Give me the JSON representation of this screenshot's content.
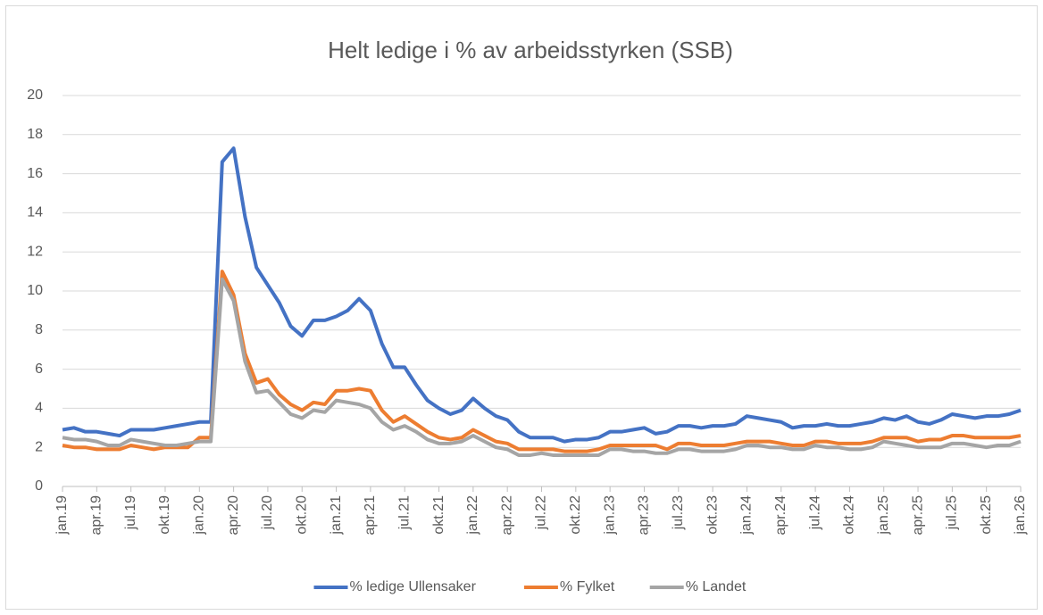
{
  "chart_data": {
    "type": "line",
    "title": "Helt ledige i % av arbeidsstyrken (SSB)",
    "categories": [
      "jan.19",
      null,
      null,
      "apr.19",
      null,
      null,
      "jul.19",
      null,
      null,
      "okt.19",
      null,
      null,
      "jan.20",
      null,
      null,
      "apr.20",
      null,
      null,
      "jul.20",
      null,
      null,
      "okt.20",
      null,
      null,
      "jan.21",
      null,
      null,
      "apr.21",
      null,
      null,
      "jul.21",
      null,
      null,
      "okt.21",
      null,
      null,
      "jan.22",
      null,
      null,
      "apr.22",
      null,
      null,
      "jul.22",
      null,
      null,
      "okt.22",
      null,
      null,
      "jan.23",
      null,
      null,
      "apr.23",
      null,
      null,
      "jul.23",
      null,
      null,
      "okt.23",
      null,
      null,
      "jan.24",
      null,
      null,
      "apr.24",
      null,
      null,
      "jul.24",
      null,
      null,
      "okt.24",
      null,
      null,
      "jan.25",
      null,
      null,
      "apr.25",
      null,
      null,
      "jul.25",
      null,
      null,
      "okt.25",
      null,
      null,
      "jan.26"
    ],
    "series": [
      {
        "name": "% ledige Ullensaker",
        "color": "#4472c4",
        "values": [
          2.9,
          3.0,
          2.8,
          2.8,
          2.7,
          2.6,
          2.9,
          2.9,
          2.9,
          3.0,
          3.1,
          3.2,
          3.3,
          3.3,
          16.6,
          17.3,
          13.8,
          11.2,
          10.3,
          9.4,
          8.2,
          7.7,
          8.5,
          8.5,
          8.7,
          9.0,
          9.6,
          9.0,
          7.3,
          6.1,
          6.1,
          5.2,
          4.4,
          4.0,
          3.7,
          3.9,
          4.5,
          4.0,
          3.6,
          3.4,
          2.8,
          2.5,
          2.5,
          2.5,
          2.3,
          2.4,
          2.4,
          2.5,
          2.8,
          2.8,
          2.9,
          3.0,
          2.7,
          2.8,
          3.1,
          3.1,
          3.0,
          3.1,
          3.1,
          3.2,
          3.6,
          3.5,
          3.4,
          3.3,
          3.0,
          3.1,
          3.1,
          3.2,
          3.1,
          3.1,
          3.2,
          3.3,
          3.5,
          3.4,
          3.6,
          3.3,
          3.2,
          3.4,
          3.7,
          3.6,
          3.5,
          3.6,
          3.6,
          3.7,
          3.9
        ]
      },
      {
        "name": "% Fylket",
        "color": "#ed7d31",
        "values": [
          2.1,
          2.0,
          2.0,
          1.9,
          1.9,
          1.9,
          2.1,
          2.0,
          1.9,
          2.0,
          2.0,
          2.0,
          2.5,
          2.5,
          11.0,
          9.8,
          6.8,
          5.3,
          5.5,
          4.7,
          4.2,
          3.9,
          4.3,
          4.2,
          4.9,
          4.9,
          5.0,
          4.9,
          3.9,
          3.3,
          3.6,
          3.2,
          2.8,
          2.5,
          2.4,
          2.5,
          2.9,
          2.6,
          2.3,
          2.2,
          1.9,
          1.9,
          1.9,
          1.9,
          1.8,
          1.8,
          1.8,
          1.9,
          2.1,
          2.1,
          2.1,
          2.1,
          2.1,
          1.9,
          2.2,
          2.2,
          2.1,
          2.1,
          2.1,
          2.2,
          2.3,
          2.3,
          2.3,
          2.2,
          2.1,
          2.1,
          2.3,
          2.3,
          2.2,
          2.2,
          2.2,
          2.3,
          2.5,
          2.5,
          2.5,
          2.3,
          2.4,
          2.4,
          2.6,
          2.6,
          2.5,
          2.5,
          2.5,
          2.5,
          2.6
        ]
      },
      {
        "name": "% Landet",
        "color": "#a5a5a5",
        "values": [
          2.5,
          2.4,
          2.4,
          2.3,
          2.1,
          2.1,
          2.4,
          2.3,
          2.2,
          2.1,
          2.1,
          2.2,
          2.3,
          2.3,
          10.6,
          9.5,
          6.4,
          4.8,
          4.9,
          4.3,
          3.7,
          3.5,
          3.9,
          3.8,
          4.4,
          4.3,
          4.2,
          4.0,
          3.3,
          2.9,
          3.1,
          2.8,
          2.4,
          2.2,
          2.2,
          2.3,
          2.6,
          2.3,
          2.0,
          1.9,
          1.6,
          1.6,
          1.7,
          1.6,
          1.6,
          1.6,
          1.6,
          1.6,
          1.9,
          1.9,
          1.8,
          1.8,
          1.7,
          1.7,
          1.9,
          1.9,
          1.8,
          1.8,
          1.8,
          1.9,
          2.1,
          2.1,
          2.0,
          2.0,
          1.9,
          1.9,
          2.1,
          2.0,
          2.0,
          1.9,
          1.9,
          2.0,
          2.3,
          2.2,
          2.1,
          2.0,
          2.0,
          2.0,
          2.2,
          2.2,
          2.1,
          2.0,
          2.1,
          2.1,
          2.3
        ]
      }
    ],
    "ylim": [
      0,
      20
    ],
    "yticks": [
      0,
      2,
      4,
      6,
      8,
      10,
      12,
      14,
      16,
      18,
      20
    ],
    "grid": true,
    "legend": "bottom"
  }
}
